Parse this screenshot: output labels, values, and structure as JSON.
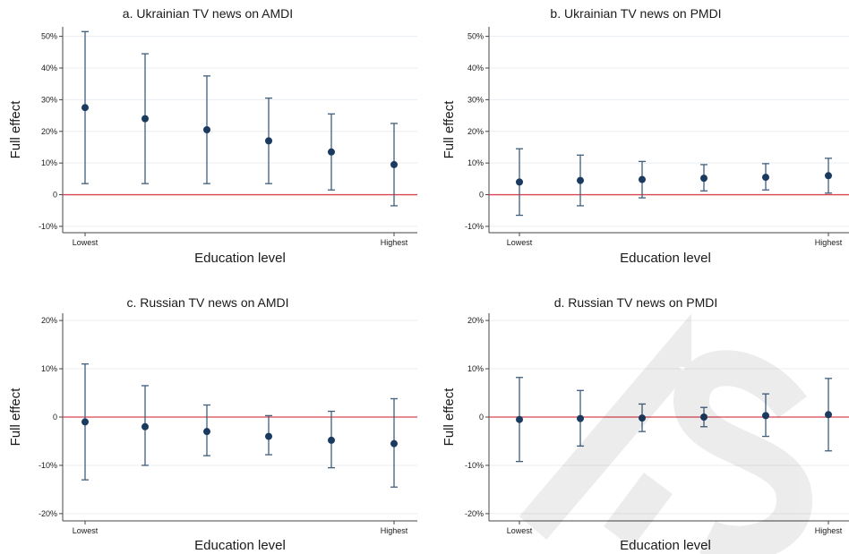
{
  "chart_data": [
    {
      "type": "scatter",
      "panel": "a",
      "title": "a. Ukrainian TV news on AMDI",
      "xlabel": "Education level",
      "ylabel": "Full effect",
      "x_tick_labels": [
        "Lowest",
        "Highest"
      ],
      "y_ticks": [
        -10,
        0,
        10,
        20,
        30,
        40,
        50
      ],
      "y_tick_labels": [
        "-10%",
        "0",
        "10%",
        "20%",
        "30%",
        "40%",
        "50%"
      ],
      "ylim": [
        -12,
        53
      ],
      "reference_line": 0,
      "points": [
        {
          "x": 1,
          "y": 27.5,
          "lo": 3.5,
          "hi": 51.5
        },
        {
          "x": 2,
          "y": 24,
          "lo": 3.5,
          "hi": 44.5
        },
        {
          "x": 3,
          "y": 20.5,
          "lo": 3.5,
          "hi": 37.5
        },
        {
          "x": 4,
          "y": 17,
          "lo": 3.5,
          "hi": 30.5
        },
        {
          "x": 5,
          "y": 13.5,
          "lo": 1.5,
          "hi": 25.5
        },
        {
          "x": 6,
          "y": 9.5,
          "lo": -3.5,
          "hi": 22.5
        }
      ]
    },
    {
      "type": "scatter",
      "panel": "b",
      "title": "b. Ukrainian TV news on PMDI",
      "xlabel": "Education level",
      "ylabel": "Full effect",
      "x_tick_labels": [
        "Lowest",
        "Highest"
      ],
      "y_ticks": [
        -10,
        0,
        10,
        20,
        30,
        40,
        50
      ],
      "y_tick_labels": [
        "-10%",
        "0",
        "10%",
        "20%",
        "30%",
        "40%",
        "50%"
      ],
      "ylim": [
        -12,
        53
      ],
      "reference_line": 0,
      "points": [
        {
          "x": 1,
          "y": 4,
          "lo": -6.5,
          "hi": 14.5
        },
        {
          "x": 2,
          "y": 4.5,
          "lo": -3.5,
          "hi": 12.5
        },
        {
          "x": 3,
          "y": 4.8,
          "lo": -1,
          "hi": 10.5
        },
        {
          "x": 4,
          "y": 5.2,
          "lo": 1.2,
          "hi": 9.5
        },
        {
          "x": 5,
          "y": 5.5,
          "lo": 1.5,
          "hi": 9.8
        },
        {
          "x": 6,
          "y": 6,
          "lo": 0.5,
          "hi": 11.5
        }
      ]
    },
    {
      "type": "scatter",
      "panel": "c",
      "title": "c. Russian TV news on AMDI",
      "xlabel": "Education level",
      "ylabel": "Full effect",
      "x_tick_labels": [
        "Lowest",
        "Highest"
      ],
      "y_ticks": [
        -20,
        -10,
        0,
        10,
        20
      ],
      "y_tick_labels": [
        "-20%",
        "-10%",
        "0",
        "10%",
        "20%"
      ],
      "ylim": [
        -21.5,
        21.5
      ],
      "reference_line": 0,
      "points": [
        {
          "x": 1,
          "y": -1,
          "lo": -13,
          "hi": 11
        },
        {
          "x": 2,
          "y": -2,
          "lo": -10,
          "hi": 6.5
        },
        {
          "x": 3,
          "y": -3,
          "lo": -8,
          "hi": 2.5
        },
        {
          "x": 4,
          "y": -4,
          "lo": -7.8,
          "hi": 0.3
        },
        {
          "x": 5,
          "y": -4.8,
          "lo": -10.5,
          "hi": 1.2
        },
        {
          "x": 6,
          "y": -5.5,
          "lo": -14.5,
          "hi": 3.8
        }
      ]
    },
    {
      "type": "scatter",
      "panel": "d",
      "title": "d. Russian TV news on PMDI",
      "xlabel": "Education level",
      "ylabel": "Full effect",
      "x_tick_labels": [
        "Lowest",
        "Highest"
      ],
      "y_ticks": [
        -20,
        -10,
        0,
        10,
        20
      ],
      "y_tick_labels": [
        "-20%",
        "-10%",
        "0",
        "10%",
        "20%"
      ],
      "ylim": [
        -21.5,
        21.5
      ],
      "reference_line": 0,
      "points": [
        {
          "x": 1,
          "y": -0.5,
          "lo": -9.2,
          "hi": 8.2
        },
        {
          "x": 2,
          "y": -0.3,
          "lo": -6,
          "hi": 5.5
        },
        {
          "x": 3,
          "y": -0.2,
          "lo": -3,
          "hi": 2.7
        },
        {
          "x": 4,
          "y": 0,
          "lo": -2,
          "hi": 2
        },
        {
          "x": 5,
          "y": 0.3,
          "lo": -4,
          "hi": 4.8
        },
        {
          "x": 6,
          "y": 0.5,
          "lo": -7,
          "hi": 8
        }
      ]
    }
  ],
  "colors": {
    "point": "#1a3a5f",
    "ci": "#3f5f7d",
    "reference": "#d9434f",
    "grid": "#eaeef2",
    "watermark": "#000000"
  }
}
